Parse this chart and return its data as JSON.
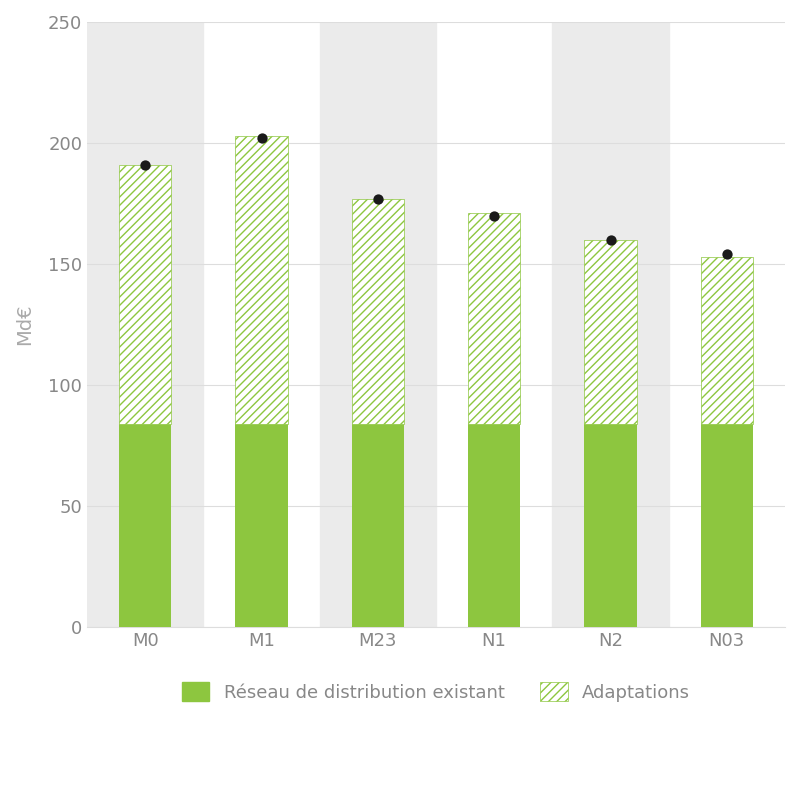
{
  "categories": [
    "M0",
    "M1",
    "M23",
    "N1",
    "N2",
    "N03"
  ],
  "base_values": [
    84,
    84,
    84,
    84,
    84,
    84
  ],
  "adaptation_values": [
    107,
    119,
    93,
    87,
    76,
    69
  ],
  "dot_values": [
    191,
    202,
    177,
    170,
    160,
    154
  ],
  "bar_color_base": "#8dc63f",
  "bar_color_adaptation_face": "#ffffff",
  "bar_color_adaptation_hatch": "#8dc63f",
  "dot_color": "#1a1a1a",
  "bg_stripe_color": "#ebebeb",
  "ylabel": "Md€",
  "ylim": [
    0,
    250
  ],
  "yticks": [
    0,
    50,
    100,
    150,
    200,
    250
  ],
  "legend_label_1": "Réseau de distribution existant",
  "legend_label_2": "Adaptations",
  "bar_width": 0.45,
  "stripe_indices": [
    0,
    2,
    4
  ],
  "axis_label_color": "#aaaaaa",
  "tick_label_color": "#888888",
  "grid_color": "#dddddd"
}
